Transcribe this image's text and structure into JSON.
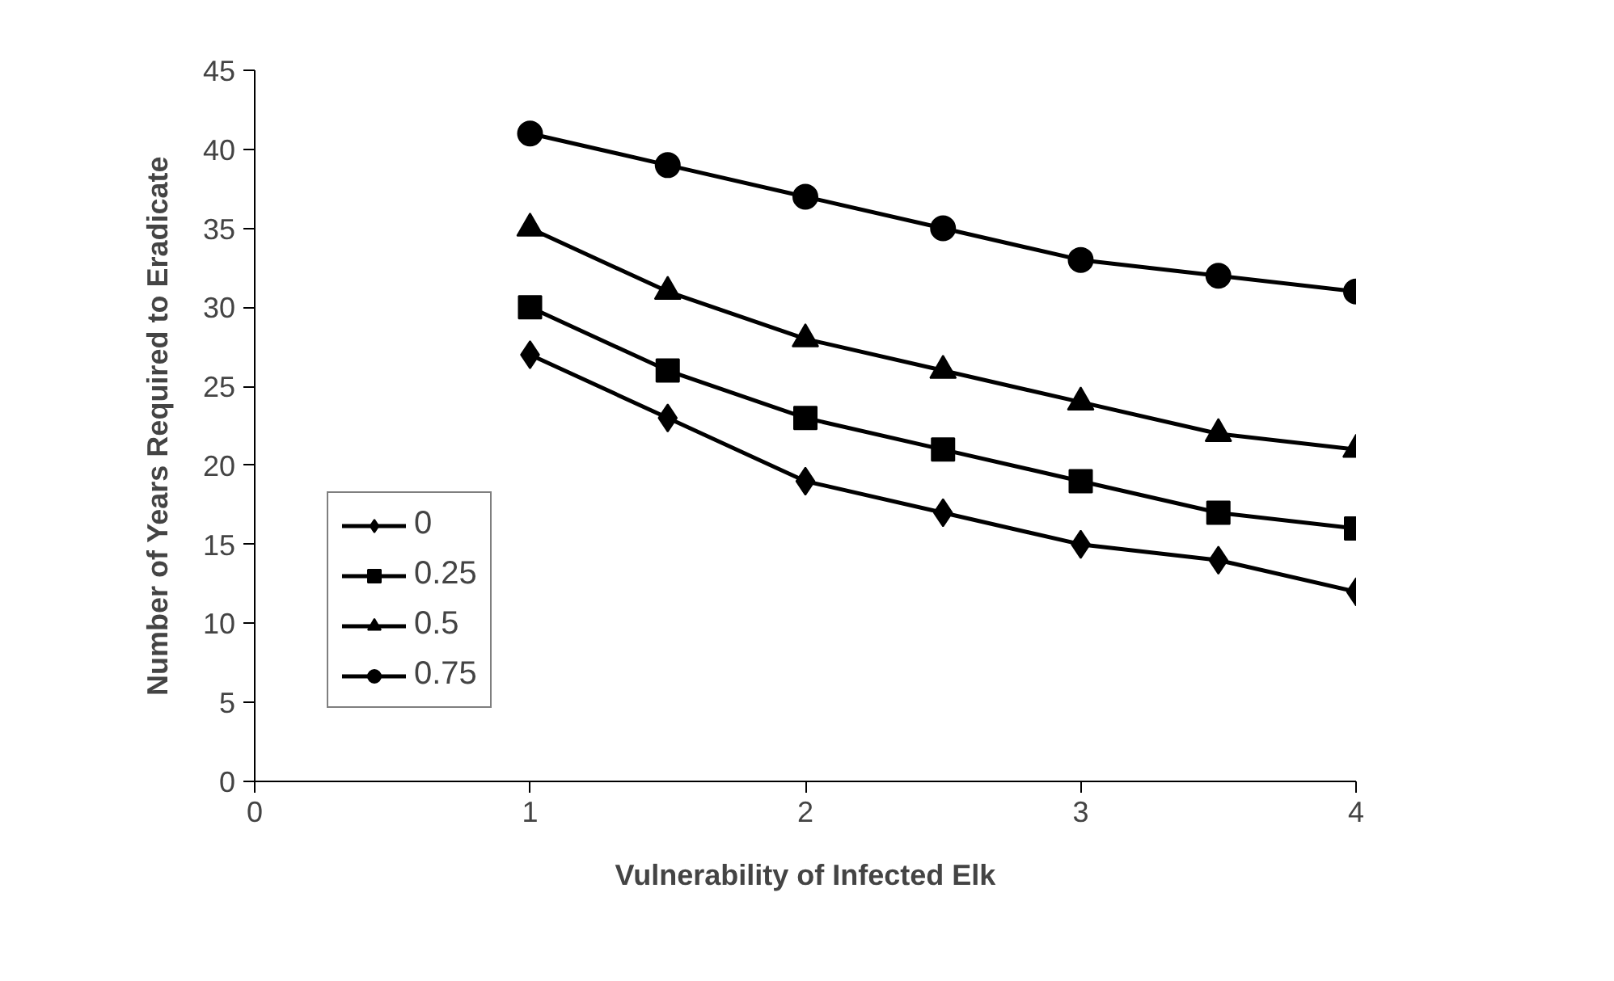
{
  "chart_data": {
    "type": "line",
    "xlabel": "Vulnerability of Infected Elk",
    "ylabel": "Number of Years Required to Eradicate",
    "x": [
      1,
      1.5,
      2,
      2.5,
      3,
      3.5,
      4
    ],
    "series": [
      {
        "name": "0",
        "color": "#000000",
        "marker": "diamond",
        "values": [
          27,
          23,
          19,
          17,
          15,
          14,
          12
        ]
      },
      {
        "name": "0.25",
        "color": "#000000",
        "marker": "square",
        "values": [
          30,
          26,
          23,
          21,
          19,
          17,
          16
        ]
      },
      {
        "name": "0.5",
        "color": "#000000",
        "marker": "triangle",
        "values": [
          35,
          31,
          28,
          26,
          24,
          22,
          21
        ]
      },
      {
        "name": "0.75",
        "color": "#000000",
        "marker": "circle",
        "values": [
          41,
          39,
          37,
          35,
          33,
          32,
          31
        ]
      }
    ],
    "xlim": [
      0,
      4
    ],
    "xticks": [
      0,
      1,
      2,
      3,
      4
    ],
    "ylim": [
      0,
      45
    ],
    "yticks": [
      0,
      5,
      10,
      15,
      20,
      25,
      30,
      35,
      40,
      45
    ],
    "grid": false,
    "legend": "bottom left",
    "line_style": "solid"
  }
}
